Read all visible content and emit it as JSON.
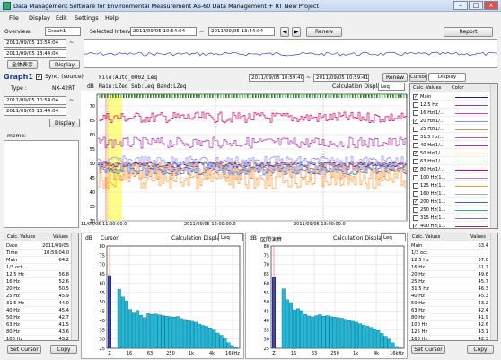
{
  "window": {
    "title": "Data Management Software for Environmental Measurement AS-60 Data Management + RT New Project"
  },
  "menu": [
    "File",
    "Display",
    "Edit",
    "Settings",
    "Help"
  ],
  "toolbar": {
    "overview_label": "Overview:",
    "overview_value": "Graph1",
    "selected_interval_label": "Selected Interval:",
    "interval_start": "2011/09/05 10:54:04",
    "tilde": "~",
    "interval_end": "2011/09/05 13:44:04",
    "renew": "Renew",
    "report": "Report"
  },
  "left": {
    "date_start": "2011/09/05 10:54:04",
    "date_end": "2011/09/05 13:44:04",
    "show_all": "全体表示",
    "display": "Display",
    "graph_title": "Graph1",
    "sync_label": "Sync. (source)",
    "type_label": "Type :",
    "type_value": "NX-42RT",
    "date2_start": "2011/09/05 10:54:04",
    "date2_end": "2011/09/05 13:44:04",
    "display2": "Display",
    "memo_label": "memo:"
  },
  "main_graph": {
    "file_label": "File:Auto_0002_Leq",
    "db_label": "dB",
    "bands_label": "Main:LZeq Sub:Leq Band:LZeq",
    "time_a": "2011/09/05 10:59:40",
    "time_b": "2011/09/05 10:59:41",
    "renew": "Renew",
    "calc_label": "Calculation Display",
    "calc_value": "Leq",
    "y_ticks": [
      "70",
      "65",
      "60",
      "55",
      "50",
      "45",
      "40",
      "35",
      "30"
    ],
    "x_ticks": [
      "11/09/05 11:00:00.0",
      "2011/09/05 12:00:00.0",
      "2011/09/05 13:00:00.0"
    ]
  },
  "right_tabs": {
    "tab1": "Cursor",
    "tab2": "Display Settings"
  },
  "legend": {
    "header_values": "Calc. Values",
    "header_color": "Color",
    "items": [
      {
        "label": "Main",
        "checked": true,
        "color": "#1a1a8c"
      },
      {
        "label": "12.5 Hz",
        "checked": false,
        "color": "#7f3fbf"
      },
      {
        "label": "16 Hz(1/...",
        "checked": false,
        "color": "#cc44cc"
      },
      {
        "label": "20 Hz(1/...",
        "checked": true,
        "color": "#8888ff"
      },
      {
        "label": "25 Hz(1/...",
        "checked": false,
        "color": "#bb9966"
      },
      {
        "label": "31.5 Hz(...",
        "checked": false,
        "color": "#cc5599"
      },
      {
        "label": "40 Hz(1/...",
        "checked": false,
        "color": "#aa33aa"
      },
      {
        "label": "50 Hz(1/...",
        "checked": true,
        "color": "#ee7722"
      },
      {
        "label": "63 Hz(1/...",
        "checked": false,
        "color": "#55aa55"
      },
      {
        "label": "80 Hz(1/...",
        "checked": true,
        "color": "#cc0066"
      },
      {
        "label": "100 Hz(1...",
        "checked": false,
        "color": "#dd7788"
      },
      {
        "label": "125 Hz(1...",
        "checked": false,
        "color": "#ff9933"
      },
      {
        "label": "160 Hz(1...",
        "checked": false,
        "color": "#aaaaaa"
      },
      {
        "label": "200 Hz(1...",
        "checked": true,
        "color": "#3366cc"
      },
      {
        "label": "250 Hz(1...",
        "checked": false,
        "color": "#33aa88"
      },
      {
        "label": "315 Hz(1...",
        "checked": false,
        "color": "#8866cc"
      },
      {
        "label": "400 Hz(1...",
        "checked": true,
        "color": "#993366"
      }
    ]
  },
  "bottom_left_table": {
    "h1": "Calc. Values",
    "h2": "Values",
    "rows": [
      [
        "Date",
        "2011/09/05"
      ],
      [
        "Time",
        "10:59:04.0"
      ],
      [
        "Main",
        "64.2"
      ],
      [
        "1/3 oct.",
        ""
      ],
      [
        "12.5 Hz",
        "56.8"
      ],
      [
        "16 Hz",
        "52.6"
      ],
      [
        "20 Hz",
        "50.5"
      ],
      [
        "25 Hz",
        "45.9"
      ],
      [
        "31.5 Hz",
        "44.0"
      ],
      [
        "40 Hz",
        "45.4"
      ],
      [
        "50 Hz",
        "42.7"
      ],
      [
        "63 Hz",
        "41.5"
      ],
      [
        "80 Hz",
        "43.6"
      ],
      [
        "100 Hz",
        "43.2"
      ]
    ],
    "set_cursor": "Set Cursor",
    "copy": "Copy"
  },
  "bottom_right_table": {
    "h1": "Calc. Values",
    "h2": "Values",
    "rows": [
      [
        "Main",
        "63.4"
      ],
      [
        "1/3 oct.",
        ""
      ],
      [
        "12.5 Hz",
        "57.0"
      ],
      [
        "16 Hz",
        "51.2"
      ],
      [
        "20 Hz",
        "49.6"
      ],
      [
        "25 Hz",
        "45.7"
      ],
      [
        "31.5 Hz",
        "46.3"
      ],
      [
        "40 Hz",
        "45.3"
      ],
      [
        "50 Hz",
        "43.2"
      ],
      [
        "63 Hz",
        "42.4"
      ],
      [
        "80 Hz",
        "41.9"
      ],
      [
        "100 Hz",
        "42.6"
      ],
      [
        "125 Hz",
        "43.1"
      ],
      [
        "160 Hz",
        "42.3"
      ]
    ],
    "set_cursor": "Set Cursor",
    "copy": "Copy"
  },
  "spectrum_left": {
    "db_label": "dB",
    "title": "Cursor",
    "calc_label": "Calculation Display",
    "calc_value": "Leq",
    "y_ticks": [
      "80",
      "75",
      "70",
      "65",
      "60",
      "55",
      "50",
      "45",
      "40",
      "35",
      "30",
      "25"
    ],
    "x_ticks": [
      "Z",
      "16",
      "63",
      "250",
      "1k",
      "4k",
      "16kHz"
    ]
  },
  "spectrum_right": {
    "db_label": "dB",
    "title": "区間演算",
    "calc_label": "Calculation Display",
    "calc_value": "Leq",
    "y_ticks": [
      "80",
      "75",
      "70",
      "65",
      "60",
      "55",
      "50",
      "45",
      "40",
      "35",
      "30",
      "25"
    ],
    "x_ticks": [
      "Z",
      "16",
      "63",
      "250",
      "1k",
      "4k",
      "16kHz"
    ]
  },
  "chart_data": [
    {
      "type": "bar",
      "title": "Cursor",
      "ylim": [
        25,
        80
      ],
      "main_value": 64.2,
      "values": [
        56.8,
        52.6,
        50.5,
        45.9,
        44.0,
        45.4,
        42.7,
        41.5,
        43.6,
        43.2,
        43.5,
        43.0,
        42.6,
        42.3,
        42.0,
        41.8,
        42.1,
        41.0,
        40.5,
        39.8,
        39.5,
        39.0,
        38.0,
        37.3,
        36.8,
        36.0,
        34.8,
        33.2,
        32.0,
        30.5,
        28.0,
        26.5,
        25.5
      ]
    },
    {
      "type": "bar",
      "title": "区間演算",
      "ylim": [
        25,
        80
      ],
      "main_value": 63.4,
      "values": [
        57.0,
        51.2,
        49.6,
        45.7,
        46.3,
        45.3,
        43.2,
        42.4,
        41.9,
        42.6,
        43.1,
        42.3,
        42.6,
        42.0,
        41.8,
        41.5,
        41.2,
        40.6,
        40.0,
        39.5,
        39.0,
        38.2,
        37.5,
        37.0,
        36.2,
        35.5,
        34.5,
        33.0,
        31.5,
        30.0,
        28.0,
        26.0,
        25.2
      ]
    }
  ]
}
